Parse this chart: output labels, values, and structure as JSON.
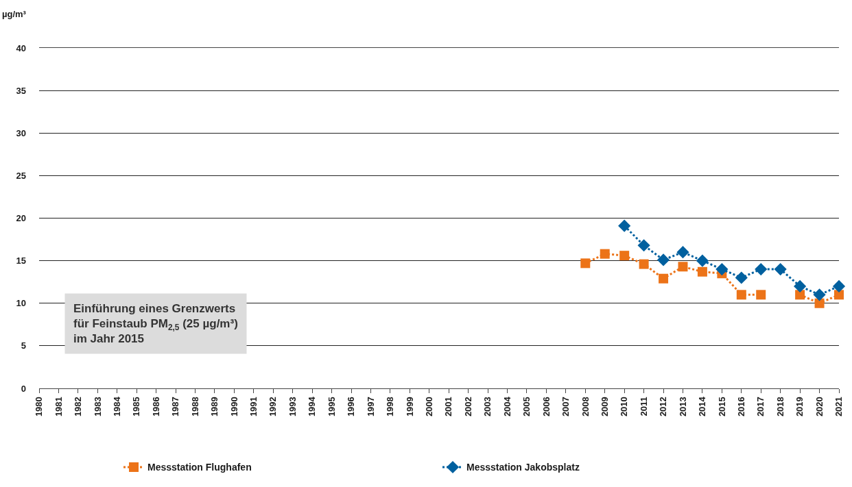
{
  "chart_data": {
    "type": "line",
    "ylabel": "µg/m³",
    "x": [
      2008,
      2009,
      2010,
      2011,
      2012,
      2013,
      2014,
      2015,
      2016,
      2017,
      2018,
      2019,
      2020,
      2021
    ],
    "series": [
      {
        "name": "Messstation Flughafen",
        "color": "#ec7318",
        "marker": "square",
        "values": [
          14.7,
          15.8,
          15.6,
          14.6,
          12.9,
          14.3,
          13.7,
          13.5,
          11,
          11,
          null,
          11,
          10,
          11
        ]
      },
      {
        "name": "Messstation Jakobsplatz",
        "color": "#00609f",
        "marker": "diamond",
        "values": [
          null,
          null,
          19.1,
          16.8,
          15.1,
          16.0,
          15,
          14,
          13,
          14,
          14,
          12,
          11,
          12
        ]
      }
    ],
    "line_style": "dotted",
    "xlim": [
      1980,
      2021
    ],
    "xticks": [
      1980,
      1981,
      1982,
      1983,
      1984,
      1985,
      1986,
      1987,
      1988,
      1989,
      1990,
      1991,
      1992,
      1993,
      1994,
      1995,
      1996,
      1997,
      1998,
      1999,
      2000,
      2001,
      2002,
      2003,
      2004,
      2005,
      2006,
      2007,
      2008,
      2009,
      2010,
      2011,
      2012,
      2013,
      2014,
      2015,
      2016,
      2017,
      2018,
      2019,
      2020,
      2021
    ],
    "ylim": [
      0,
      40
    ],
    "yticks": [
      0,
      5,
      10,
      15,
      20,
      25,
      30,
      35,
      40
    ],
    "grid": "y",
    "legend": "bottom",
    "annotations": [
      "Einführung eines Grenzwerts\nfür Feinstaub PM$_{2,5}$ (25 µg/m³)\nim Jahr 2015"
    ]
  }
}
